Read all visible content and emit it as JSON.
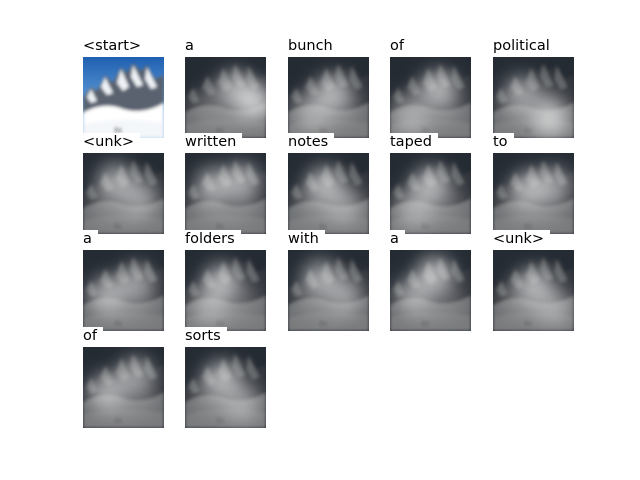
{
  "figure": {
    "words": [
      "<start>",
      "a",
      "bunch",
      "of",
      "political",
      "<unk>",
      "written",
      "notes",
      "taped",
      "to",
      "a",
      "folders",
      "with",
      "a",
      "<unk>",
      "of",
      "sorts"
    ],
    "columns": 5,
    "first_cell_kind": "original-photo",
    "other_cell_kind": "attention-overlay",
    "attention_peaks": [
      null,
      [
        [
          0.85,
          0.55,
          1.0
        ],
        [
          0.62,
          0.4,
          0.7
        ]
      ],
      [
        [
          0.55,
          0.45,
          0.8
        ],
        [
          0.3,
          0.7,
          0.5
        ]
      ],
      [
        [
          0.6,
          0.4,
          0.8
        ],
        [
          0.25,
          0.75,
          0.5
        ]
      ],
      [
        [
          0.7,
          0.75,
          0.9
        ],
        [
          0.35,
          0.45,
          0.6
        ]
      ],
      [
        [
          0.4,
          0.35,
          0.7
        ],
        [
          0.7,
          0.55,
          0.6
        ]
      ],
      [
        [
          0.35,
          0.4,
          0.7
        ],
        [
          0.7,
          0.35,
          0.7
        ]
      ],
      [
        [
          0.45,
          0.4,
          0.8
        ],
        [
          0.7,
          0.65,
          0.5
        ]
      ],
      [
        [
          0.5,
          0.4,
          0.8
        ],
        [
          0.3,
          0.7,
          0.5
        ]
      ],
      [
        [
          0.45,
          0.45,
          0.8
        ],
        [
          0.75,
          0.4,
          0.6
        ]
      ],
      [
        [
          0.3,
          0.55,
          0.7
        ],
        [
          0.65,
          0.4,
          0.6
        ]
      ],
      [
        [
          0.45,
          0.4,
          0.8
        ],
        [
          0.3,
          0.7,
          0.5
        ]
      ],
      [
        [
          0.4,
          0.35,
          0.7
        ],
        [
          0.7,
          0.55,
          0.6
        ]
      ],
      [
        [
          0.55,
          0.3,
          0.8
        ],
        [
          0.3,
          0.55,
          0.6
        ]
      ],
      [
        [
          0.5,
          0.45,
          0.8
        ],
        [
          0.75,
          0.7,
          0.5
        ]
      ],
      [
        [
          0.3,
          0.55,
          0.7
        ],
        [
          0.65,
          0.35,
          0.6
        ]
      ],
      [
        [
          0.45,
          0.4,
          0.8
        ],
        [
          0.7,
          0.7,
          0.5
        ]
      ]
    ]
  }
}
